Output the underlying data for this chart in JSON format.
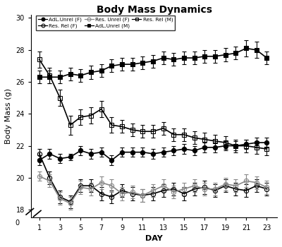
{
  "title": "Body Mass Dynamics",
  "xlabel": "DAY",
  "ylabel": "Body Mass (g)",
  "ylim_bottom": 17.5,
  "ylim_top": 30.2,
  "xticks": [
    1,
    3,
    5,
    7,
    9,
    11,
    13,
    15,
    17,
    19,
    21,
    23
  ],
  "yticks": [
    18,
    20,
    22,
    24,
    26,
    28,
    30
  ],
  "days": [
    1,
    2,
    3,
    4,
    5,
    6,
    7,
    8,
    9,
    10,
    11,
    12,
    13,
    14,
    15,
    16,
    17,
    18,
    19,
    20,
    21,
    22,
    23
  ],
  "series_order": [
    "AdL_Unrel_F",
    "AdL_Unrel_M",
    "Res_Rel_F",
    "Res_Rel_M",
    "Res_Unrel_F"
  ],
  "series": {
    "AdL_Unrel_F": {
      "label": "AdL.Unrel (F)",
      "marker": "o",
      "color": "#000000",
      "fillstyle": "full",
      "linestyle": "-",
      "linewidth": 1.2,
      "markersize": 4.5,
      "values": [
        21.1,
        21.5,
        21.2,
        21.3,
        21.7,
        21.5,
        21.6,
        21.1,
        21.6,
        21.6,
        21.6,
        21.5,
        21.6,
        21.7,
        21.8,
        21.7,
        21.9,
        21.9,
        22.0,
        22.0,
        22.1,
        22.2,
        22.2
      ],
      "errors": [
        0.3,
        0.3,
        0.3,
        0.2,
        0.3,
        0.3,
        0.3,
        0.3,
        0.3,
        0.3,
        0.3,
        0.3,
        0.3,
        0.3,
        0.3,
        0.3,
        0.3,
        0.3,
        0.3,
        0.3,
        0.3,
        0.3,
        0.3
      ]
    },
    "AdL_Unrel_M": {
      "label": "AdL.Unrel (M)",
      "marker": "s",
      "color": "#000000",
      "fillstyle": "full",
      "linestyle": "-",
      "linewidth": 1.2,
      "markersize": 4.5,
      "values": [
        26.3,
        26.3,
        26.3,
        26.5,
        26.4,
        26.6,
        26.7,
        27.0,
        27.1,
        27.1,
        27.2,
        27.3,
        27.5,
        27.4,
        27.5,
        27.5,
        27.6,
        27.6,
        27.7,
        27.8,
        28.1,
        28.0,
        27.5
      ],
      "errors": [
        0.4,
        0.4,
        0.4,
        0.4,
        0.4,
        0.4,
        0.4,
        0.4,
        0.4,
        0.4,
        0.4,
        0.4,
        0.4,
        0.4,
        0.4,
        0.4,
        0.4,
        0.4,
        0.4,
        0.4,
        0.5,
        0.5,
        0.4
      ]
    },
    "Res_Rel_F": {
      "label": "Res. Rel (F)",
      "marker": "o",
      "color": "#000000",
      "fillstyle": "none",
      "linestyle": "-",
      "linewidth": 1.2,
      "markersize": 4.5,
      "values": [
        21.5,
        20.0,
        18.8,
        18.5,
        19.5,
        19.5,
        19.0,
        18.8,
        19.2,
        19.0,
        18.9,
        19.0,
        19.2,
        19.3,
        19.0,
        19.3,
        19.4,
        19.2,
        19.5,
        19.3,
        19.2,
        19.5,
        19.3
      ],
      "errors": [
        0.3,
        0.4,
        0.4,
        0.4,
        0.4,
        0.4,
        0.4,
        0.4,
        0.4,
        0.4,
        0.4,
        0.4,
        0.4,
        0.4,
        0.4,
        0.4,
        0.4,
        0.4,
        0.4,
        0.4,
        0.4,
        0.4,
        0.4
      ]
    },
    "Res_Rel_M": {
      "label": "Res. Rel (M)",
      "marker": "s",
      "color": "#000000",
      "fillstyle": "none",
      "linestyle": "-",
      "linewidth": 1.2,
      "markersize": 4.5,
      "values": [
        27.4,
        26.4,
        25.0,
        23.3,
        23.8,
        23.9,
        24.3,
        23.3,
        23.2,
        23.0,
        22.9,
        22.9,
        23.1,
        22.7,
        22.7,
        22.5,
        22.4,
        22.3,
        22.2,
        22.0,
        22.0,
        21.9,
        21.8
      ],
      "errors": [
        0.5,
        0.5,
        0.5,
        0.6,
        0.5,
        0.5,
        0.5,
        0.5,
        0.4,
        0.4,
        0.4,
        0.4,
        0.4,
        0.4,
        0.4,
        0.4,
        0.4,
        0.4,
        0.4,
        0.4,
        0.4,
        0.4,
        0.4
      ]
    },
    "Res_Unrel_F": {
      "label": "Res. Unrel (F)",
      "marker": "o",
      "color": "#888888",
      "fillstyle": "none",
      "linestyle": "-",
      "linewidth": 1.2,
      "markersize": 4.5,
      "values": [
        20.1,
        19.8,
        18.7,
        18.4,
        19.4,
        19.3,
        19.7,
        19.5,
        19.0,
        19.1,
        18.9,
        19.2,
        19.5,
        19.1,
        19.3,
        19.5,
        19.3,
        19.3,
        19.6,
        19.5,
        19.8,
        19.7,
        19.4
      ],
      "errors": [
        0.3,
        0.4,
        0.4,
        0.4,
        0.4,
        0.4,
        0.4,
        0.4,
        0.4,
        0.4,
        0.4,
        0.4,
        0.4,
        0.4,
        0.4,
        0.4,
        0.4,
        0.4,
        0.4,
        0.4,
        0.4,
        0.4,
        0.4
      ]
    }
  },
  "legend_row1": [
    "AdL_Unrel_F",
    "Res_Rel_F",
    "Res_Unrel_F"
  ],
  "legend_row2": [
    "AdL_Unrel_M",
    "Res_Rel_M"
  ]
}
